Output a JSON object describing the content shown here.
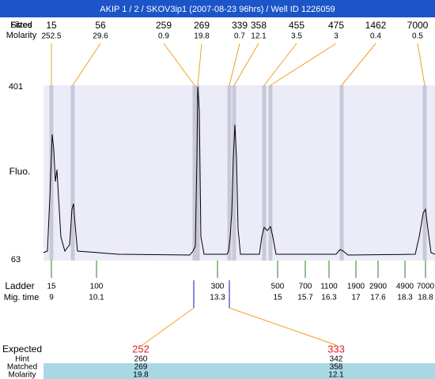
{
  "title": "AKIP 1 / 2 / SKOV3ip1 (2007-08-23 96hrs) / Well ID 1226059",
  "peak_row_labels": [
    "Fitted",
    "Sizes",
    "Molarity"
  ],
  "peaks": [
    {
      "size": "15",
      "molarity": "252.5"
    },
    {
      "size": "56",
      "molarity": "29.6"
    },
    {
      "size": "259",
      "molarity": "0.9"
    },
    {
      "size": "269",
      "molarity": "19.8"
    },
    {
      "size": "339",
      "molarity": "0.7"
    },
    {
      "size": "358",
      "molarity": "12.1"
    },
    {
      "size": "455",
      "molarity": "3.5"
    },
    {
      "size": "475",
      "molarity": "3"
    },
    {
      "size": "1462",
      "molarity": "0.4"
    },
    {
      "size": "7000",
      "molarity": "0.5"
    }
  ],
  "y_axis": {
    "top": "401",
    "bottom": "63",
    "label": "Fluo."
  },
  "ladder": {
    "row_labels": [
      "Ladder",
      "Mig. time"
    ],
    "sizes": [
      "15",
      "100",
      "300",
      "500",
      "700",
      "1100",
      "1900",
      "2900",
      "4900",
      "7000"
    ],
    "mig_times": [
      "9",
      "10.1",
      "13.3",
      "15",
      "15.7",
      "16.3",
      "17",
      "17.6",
      "18.3",
      "18.8"
    ]
  },
  "expected": {
    "label": "Expected",
    "row_labels": [
      "Hint",
      "Matched",
      "Molarity"
    ],
    "columns": [
      {
        "expected": "252",
        "hint": "260",
        "matched": "269",
        "molarity": "19.8"
      },
      {
        "expected": "333",
        "hint": "342",
        "matched": "358",
        "molarity": "12.1"
      }
    ]
  }
}
